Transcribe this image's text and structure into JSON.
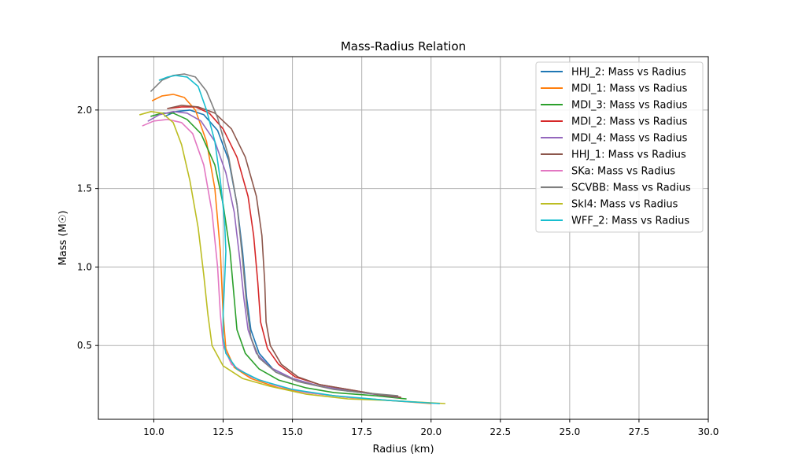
{
  "chart_data": {
    "type": "line",
    "title": "Mass-Radius Relation",
    "xlabel": "Radius (km)",
    "ylabel": "Mass (M☉)",
    "xlim": [
      8.0,
      30.0
    ],
    "ylim": [
      0.03,
      2.34
    ],
    "xticks": [
      10.0,
      12.5,
      15.0,
      17.5,
      20.0,
      22.5,
      25.0,
      27.5,
      30.0
    ],
    "xtick_labels": [
      "10.0",
      "12.5",
      "15.0",
      "17.5",
      "20.0",
      "22.5",
      "25.0",
      "27.5",
      "30.0"
    ],
    "yticks": [
      0.5,
      1.0,
      1.5,
      2.0
    ],
    "ytick_labels": [
      "0.5",
      "1.0",
      "1.5",
      "2.0"
    ],
    "grid": true,
    "legend_position": "top-right",
    "series": [
      {
        "name": "HHJ_2: Mass vs Radius",
        "color": "#1f77b4",
        "points": [
          [
            10.4,
            1.96
          ],
          [
            10.8,
            1.99
          ],
          [
            11.3,
            2.0
          ],
          [
            11.8,
            1.97
          ],
          [
            12.3,
            1.87
          ],
          [
            12.7,
            1.68
          ],
          [
            13.0,
            1.4
          ],
          [
            13.2,
            1.1
          ],
          [
            13.35,
            0.8
          ],
          [
            13.5,
            0.6
          ],
          [
            13.8,
            0.45
          ],
          [
            14.3,
            0.35
          ],
          [
            15.0,
            0.29
          ],
          [
            16.0,
            0.24
          ],
          [
            17.0,
            0.21
          ],
          [
            18.0,
            0.19
          ],
          [
            18.8,
            0.17
          ]
        ]
      },
      {
        "name": "MDI_1: Mass vs Radius",
        "color": "#ff7f0e",
        "points": [
          [
            9.95,
            2.06
          ],
          [
            10.3,
            2.09
          ],
          [
            10.7,
            2.1
          ],
          [
            11.1,
            2.08
          ],
          [
            11.5,
            2.0
          ],
          [
            11.9,
            1.8
          ],
          [
            12.2,
            1.5
          ],
          [
            12.4,
            1.1
          ],
          [
            12.5,
            0.7
          ],
          [
            12.6,
            0.48
          ],
          [
            12.9,
            0.36
          ],
          [
            13.5,
            0.29
          ],
          [
            14.5,
            0.23
          ],
          [
            15.5,
            0.2
          ],
          [
            17.0,
            0.17
          ],
          [
            18.5,
            0.15
          ],
          [
            20.0,
            0.13
          ]
        ]
      },
      {
        "name": "MDI_3: Mass vs Radius",
        "color": "#2ca02c",
        "points": [
          [
            9.9,
            1.96
          ],
          [
            10.3,
            1.98
          ],
          [
            10.7,
            1.98
          ],
          [
            11.2,
            1.94
          ],
          [
            11.7,
            1.85
          ],
          [
            12.2,
            1.65
          ],
          [
            12.5,
            1.4
          ],
          [
            12.75,
            1.1
          ],
          [
            12.9,
            0.8
          ],
          [
            13.0,
            0.6
          ],
          [
            13.3,
            0.45
          ],
          [
            13.8,
            0.35
          ],
          [
            14.5,
            0.28
          ],
          [
            15.5,
            0.23
          ],
          [
            16.5,
            0.2
          ],
          [
            18.0,
            0.18
          ],
          [
            19.1,
            0.16
          ]
        ]
      },
      {
        "name": "MDI_2: Mass vs Radius",
        "color": "#d62728",
        "points": [
          [
            10.5,
            2.01
          ],
          [
            11.0,
            2.02
          ],
          [
            11.5,
            2.02
          ],
          [
            12.0,
            1.98
          ],
          [
            12.5,
            1.88
          ],
          [
            13.0,
            1.7
          ],
          [
            13.4,
            1.45
          ],
          [
            13.6,
            1.2
          ],
          [
            13.75,
            0.9
          ],
          [
            13.85,
            0.65
          ],
          [
            14.1,
            0.48
          ],
          [
            14.5,
            0.38
          ],
          [
            15.1,
            0.3
          ],
          [
            16.0,
            0.25
          ],
          [
            17.0,
            0.22
          ],
          [
            18.0,
            0.19
          ],
          [
            18.9,
            0.17
          ]
        ]
      },
      {
        "name": "MDI_4: Mass vs Radius",
        "color": "#9467bd",
        "points": [
          [
            9.8,
            1.93
          ],
          [
            10.2,
            1.97
          ],
          [
            10.7,
            1.99
          ],
          [
            11.2,
            1.98
          ],
          [
            11.7,
            1.93
          ],
          [
            12.2,
            1.8
          ],
          [
            12.6,
            1.6
          ],
          [
            12.9,
            1.35
          ],
          [
            13.1,
            1.05
          ],
          [
            13.25,
            0.8
          ],
          [
            13.4,
            0.6
          ],
          [
            13.7,
            0.45
          ],
          [
            14.2,
            0.36
          ],
          [
            15.0,
            0.29
          ],
          [
            16.0,
            0.24
          ],
          [
            17.5,
            0.2
          ],
          [
            18.8,
            0.17
          ]
        ]
      },
      {
        "name": "HHJ_1: Mass vs Radius",
        "color": "#8c564b",
        "points": [
          [
            10.5,
            2.01
          ],
          [
            11.0,
            2.03
          ],
          [
            11.6,
            2.02
          ],
          [
            12.2,
            1.98
          ],
          [
            12.8,
            1.88
          ],
          [
            13.3,
            1.7
          ],
          [
            13.7,
            1.45
          ],
          [
            13.9,
            1.2
          ],
          [
            14.0,
            0.9
          ],
          [
            14.05,
            0.65
          ],
          [
            14.2,
            0.5
          ],
          [
            14.6,
            0.38
          ],
          [
            15.2,
            0.3
          ],
          [
            16.0,
            0.25
          ],
          [
            17.0,
            0.22
          ],
          [
            18.0,
            0.19
          ],
          [
            18.9,
            0.17
          ]
        ]
      },
      {
        "name": "SKa: Mass vs Radius",
        "color": "#e377c2",
        "points": [
          [
            9.6,
            1.9
          ],
          [
            10.0,
            1.93
          ],
          [
            10.5,
            1.94
          ],
          [
            11.0,
            1.92
          ],
          [
            11.4,
            1.85
          ],
          [
            11.8,
            1.65
          ],
          [
            12.1,
            1.35
          ],
          [
            12.3,
            1.0
          ],
          [
            12.4,
            0.7
          ],
          [
            12.5,
            0.5
          ],
          [
            12.8,
            0.38
          ],
          [
            13.5,
            0.3
          ],
          [
            14.5,
            0.24
          ],
          [
            15.5,
            0.2
          ],
          [
            17.0,
            0.17
          ],
          [
            18.5,
            0.15
          ],
          [
            20.3,
            0.13
          ]
        ]
      },
      {
        "name": "SCVBB: Mass vs Radius",
        "color": "#7f7f7f",
        "points": [
          [
            9.9,
            2.12
          ],
          [
            10.3,
            2.19
          ],
          [
            10.7,
            2.22
          ],
          [
            11.1,
            2.23
          ],
          [
            11.5,
            2.21
          ],
          [
            11.9,
            2.12
          ],
          [
            12.3,
            1.95
          ],
          [
            12.7,
            1.7
          ],
          [
            13.0,
            1.4
          ],
          [
            13.2,
            1.05
          ],
          [
            13.35,
            0.75
          ],
          [
            13.5,
            0.55
          ],
          [
            13.8,
            0.42
          ],
          [
            14.4,
            0.33
          ],
          [
            15.2,
            0.27
          ],
          [
            16.5,
            0.22
          ],
          [
            17.5,
            0.2
          ],
          [
            18.8,
            0.18
          ]
        ]
      },
      {
        "name": "SkI4: Mass vs Radius",
        "color": "#bcbd22",
        "points": [
          [
            9.5,
            1.97
          ],
          [
            9.9,
            1.99
          ],
          [
            10.3,
            1.98
          ],
          [
            10.7,
            1.92
          ],
          [
            11.0,
            1.78
          ],
          [
            11.3,
            1.55
          ],
          [
            11.6,
            1.25
          ],
          [
            11.8,
            0.95
          ],
          [
            11.95,
            0.7
          ],
          [
            12.1,
            0.5
          ],
          [
            12.5,
            0.37
          ],
          [
            13.2,
            0.29
          ],
          [
            14.2,
            0.24
          ],
          [
            15.5,
            0.19
          ],
          [
            17.0,
            0.16
          ],
          [
            18.5,
            0.15
          ],
          [
            20.5,
            0.13
          ]
        ]
      },
      {
        "name": "WFF_2: Mass vs Radius",
        "color": "#17becf",
        "points": [
          [
            10.2,
            2.19
          ],
          [
            10.5,
            2.21
          ],
          [
            10.8,
            2.22
          ],
          [
            11.2,
            2.21
          ],
          [
            11.6,
            2.15
          ],
          [
            11.9,
            2.0
          ],
          [
            12.2,
            1.8
          ],
          [
            12.4,
            1.55
          ],
          [
            12.55,
            1.3
          ],
          [
            12.6,
            1.1
          ],
          [
            12.55,
            0.9
          ],
          [
            12.5,
            0.7
          ],
          [
            12.5,
            0.55
          ],
          [
            12.6,
            0.45
          ],
          [
            13.0,
            0.35
          ],
          [
            13.8,
            0.28
          ],
          [
            15.0,
            0.22
          ],
          [
            16.5,
            0.18
          ],
          [
            18.5,
            0.15
          ],
          [
            20.3,
            0.13
          ]
        ]
      }
    ]
  }
}
